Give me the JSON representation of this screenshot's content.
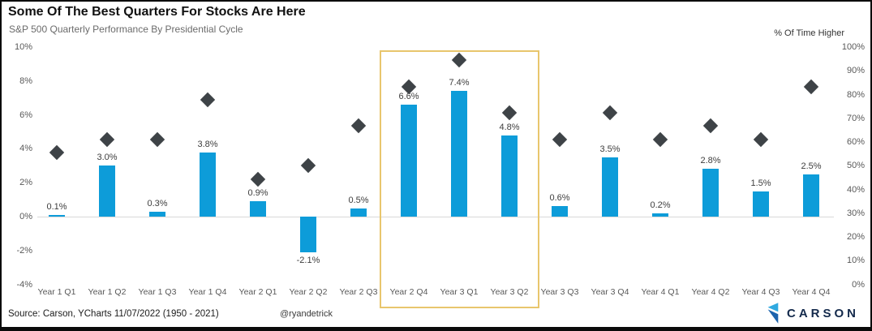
{
  "header": {
    "title": "Some Of The Best Quarters For Stocks Are Here",
    "subtitle": "S&P 500 Quarterly Performance By Presidential Cycle"
  },
  "footer": {
    "source": "Source: Carson, YCharts 11/07/2022 (1950 - 2021)",
    "handle": "@ryandetrick",
    "logo_text": "CARSON"
  },
  "colors": {
    "bar": "#0d9cd9",
    "diamond": "#3e4347",
    "highlight": "#e8c66d",
    "zero_line": "#d9d9d9",
    "logo_light_blue": "#2fa9e0",
    "logo_dark_blue": "#1c63ad",
    "logo_navy": "#13294b"
  },
  "chart_data": {
    "type": "bar",
    "subtype": "bar-with-diamond-scatter-combo",
    "title": "Some Of The Best Quarters For Stocks Are Here",
    "subtitle": "S&P 500 Quarterly Performance By Presidential Cycle",
    "grid": "zero-line-only",
    "legend_position": "none",
    "categories": [
      "Year 1 Q1",
      "Year 1 Q2",
      "Year 1 Q3",
      "Year 1 Q4",
      "Year 2 Q1",
      "Year 2 Q2",
      "Year 2 Q3",
      "Year 2 Q4",
      "Year 3 Q1",
      "Year 3 Q2",
      "Year 3 Q3",
      "Year 3 Q4",
      "Year 4 Q1",
      "Year 4 Q2",
      "Year 4 Q3",
      "Year 4 Q4"
    ],
    "series": [
      {
        "name": "Quarterly performance",
        "type": "bar",
        "axis": "left",
        "values": [
          0.1,
          3.0,
          0.3,
          3.8,
          0.9,
          -2.1,
          0.5,
          6.6,
          7.4,
          4.8,
          0.6,
          3.5,
          0.2,
          2.8,
          1.5,
          2.5
        ],
        "labels": [
          "0.1%",
          "3.0%",
          "0.3%",
          "3.8%",
          "0.9%",
          "-2.1%",
          "0.5%",
          "6.6%",
          "7.4%",
          "4.8%",
          "0.6%",
          "3.5%",
          "0.2%",
          "2.8%",
          "1.5%",
          "2.5%"
        ]
      },
      {
        "name": "% Of Time Higher",
        "type": "scatter-diamond",
        "axis": "right",
        "values": [
          55.6,
          61.1,
          61.1,
          77.8,
          44.4,
          50.0,
          66.7,
          83.3,
          94.4,
          72.2,
          61.1,
          72.2,
          61.1,
          66.7,
          61.1,
          83.3
        ]
      }
    ],
    "left_axis": {
      "min": -4,
      "max": 10,
      "ticks": [
        10,
        8,
        6,
        4,
        2,
        0,
        -2,
        -4
      ],
      "tick_labels": [
        "10%",
        "8%",
        "6%",
        "4%",
        "2%",
        "0%",
        "-2%",
        "-4%"
      ]
    },
    "right_axis": {
      "label": "% Of Time Higher",
      "min": 0,
      "max": 100,
      "ticks": [
        100,
        90,
        80,
        70,
        60,
        50,
        40,
        30,
        20,
        10,
        0
      ],
      "tick_labels": [
        "100%",
        "90%",
        "80%",
        "70%",
        "60%",
        "50%",
        "40%",
        "30%",
        "20%",
        "10%",
        "0%"
      ]
    },
    "highlight": {
      "first_category": "Year 2 Q4",
      "last_category": "Year 3 Q2",
      "color": "#e8c66d"
    }
  }
}
